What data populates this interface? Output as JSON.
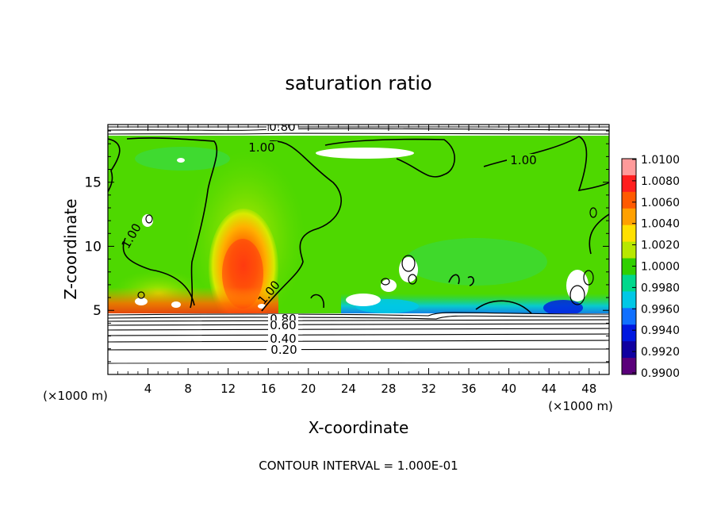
{
  "chart_data": {
    "type": "heatmap",
    "title": "saturation ratio",
    "xlabel": "X-coordinate",
    "ylabel": "Z-coordinate",
    "x_unit_left": "(×1000 m)",
    "x_unit_right": "(×1000 m)",
    "xlim": [
      0,
      50
    ],
    "ylim": [
      0,
      19.5
    ],
    "x_ticks": [
      4,
      8,
      12,
      16,
      20,
      24,
      28,
      32,
      36,
      40,
      44,
      48
    ],
    "y_ticks": [
      5,
      10,
      15
    ],
    "colorbar": {
      "min": 0.99,
      "max": 1.01,
      "labels": [
        "1.0100",
        "1.0080",
        "1.0060",
        "1.0040",
        "1.0020",
        "1.0000",
        "0.9980",
        "0.9960",
        "0.9940",
        "0.9920",
        "0.9900"
      ],
      "colors": [
        "#ff9a9a",
        "#ff1e1e",
        "#ff5a00",
        "#ffa000",
        "#ffe000",
        "#b8e800",
        "#30d000",
        "#00d88c",
        "#00c8e6",
        "#1070ff",
        "#0018e0",
        "#1000a0",
        "#5a007a"
      ]
    },
    "contour_labels": [
      "0.80",
      "1.00",
      "1.00",
      "1.00",
      "1.00",
      "0.80",
      "0.60",
      "0.40",
      "0.20"
    ],
    "contour_interval_text": "CONTOUR INTERVAL = 1.000E-01",
    "grid": false
  }
}
